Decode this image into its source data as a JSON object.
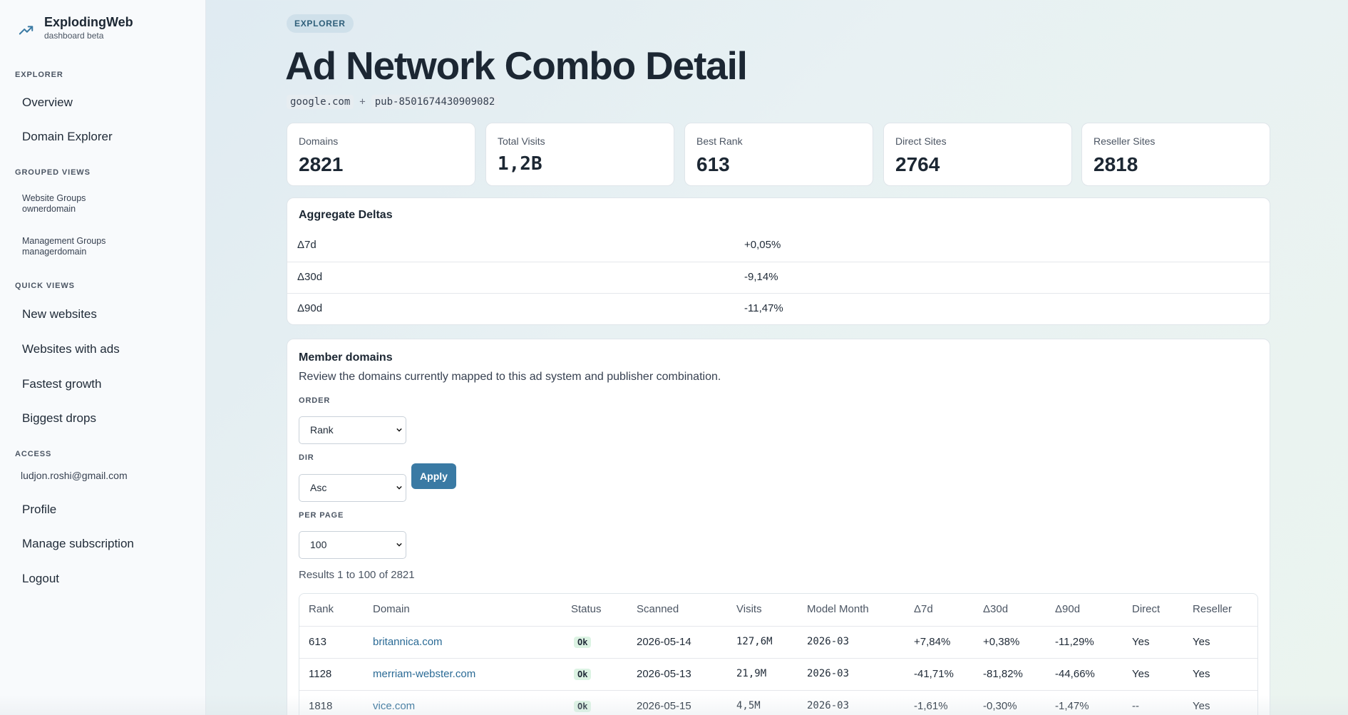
{
  "brand": {
    "name": "ExplodingWeb",
    "subtitle": "dashboard beta",
    "icon": "trending-up-icon",
    "accent": "#3a7aa4"
  },
  "sidebar": {
    "sections": {
      "explorer": "EXPLORER",
      "grouped": "GROUPED VIEWS",
      "quick": "QUICK VIEWS",
      "access": "ACCESS"
    },
    "explorer_items": [
      "Overview",
      "Domain Explorer"
    ],
    "grouped_items": [
      {
        "title": "Website Groups",
        "sub": "ownerdomain"
      },
      {
        "title": "Management Groups",
        "sub": "managerdomain"
      }
    ],
    "quick_items": [
      "New websites",
      "Websites with ads",
      "Fastest growth",
      "Biggest drops"
    ],
    "email": "ludjon.roshi@gmail.com",
    "access_items": [
      "Profile",
      "Manage subscription",
      "Logout"
    ]
  },
  "page": {
    "badge": "EXPLORER",
    "title": "Ad Network Combo Detail",
    "ad_system": "google.com",
    "plus": "+",
    "publisher": "pub-8501674430909082"
  },
  "stats": [
    {
      "label": "Domains",
      "value": "2821"
    },
    {
      "label": "Total Visits",
      "value": "1,2B"
    },
    {
      "label": "Best Rank",
      "value": "613"
    },
    {
      "label": "Direct Sites",
      "value": "2764"
    },
    {
      "label": "Reseller Sites",
      "value": "2818"
    }
  ],
  "aggregate": {
    "title": "Aggregate Deltas",
    "rows": [
      {
        "key": "Δ7d",
        "value": "+0,05%"
      },
      {
        "key": "Δ30d",
        "value": "-9,14%"
      },
      {
        "key": "Δ90d",
        "value": "-11,47%"
      }
    ]
  },
  "members": {
    "title": "Member domains",
    "description": "Review the domains currently mapped to this ad system and publisher combination.",
    "order_label": "ORDER",
    "order_value": "Rank",
    "dir_label": "DIR",
    "dir_value": "Asc",
    "apply_label": "Apply",
    "per_page_label": "PER PAGE",
    "per_page_value": "100",
    "results_text": "Results 1 to 100 of 2821",
    "columns": [
      "Rank",
      "Domain",
      "Status",
      "Scanned",
      "Visits",
      "Model Month",
      "Δ7d",
      "Δ30d",
      "Δ90d",
      "Direct",
      "Reseller"
    ],
    "rows": [
      [
        "613",
        "britannica.com",
        "Ok",
        "2026-05-14",
        "127,6M",
        "2026-03",
        "+7,84%",
        "+0,38%",
        "-11,29%",
        "Yes",
        "Yes"
      ],
      [
        "1128",
        "merriam-webster.com",
        "Ok",
        "2026-05-13",
        "21,9M",
        "2026-03",
        "-41,71%",
        "-81,82%",
        "-44,66%",
        "Yes",
        "Yes"
      ],
      [
        "1818",
        "vice.com",
        "Ok",
        "2026-05-15",
        "4,5M",
        "2026-03",
        "-1,61%",
        "-0,30%",
        "-1,47%",
        "--",
        "Yes"
      ]
    ]
  }
}
